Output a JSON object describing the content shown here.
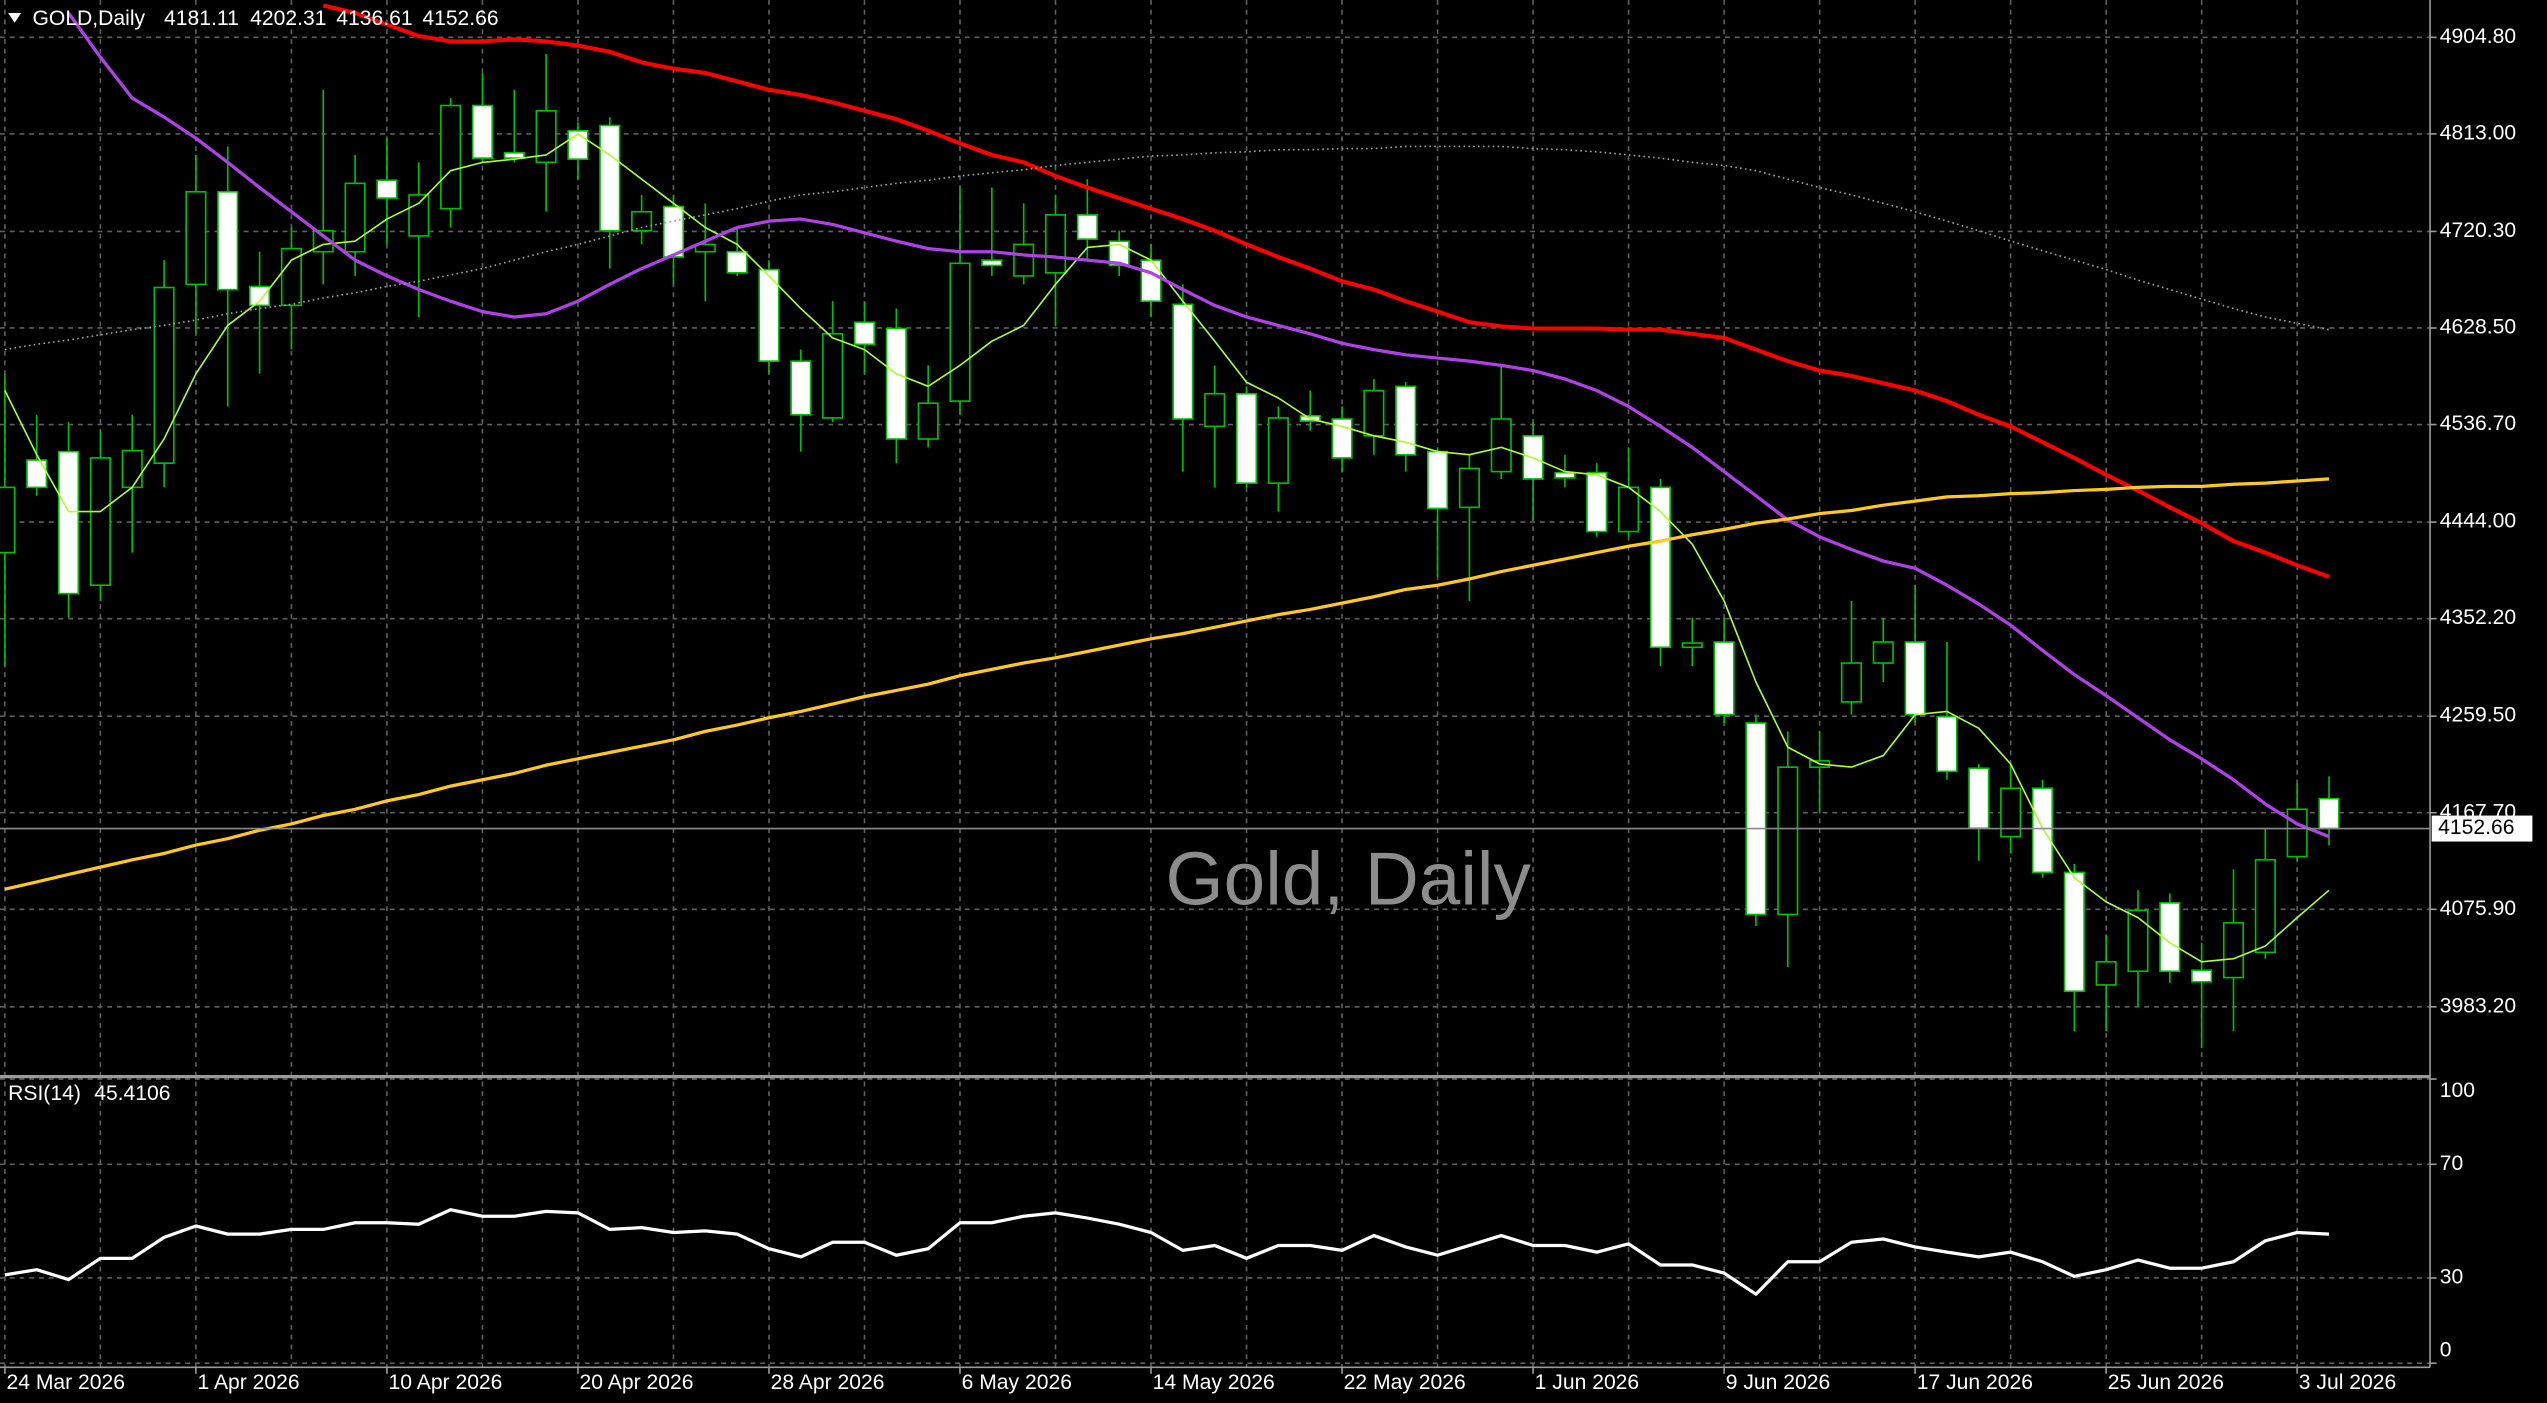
{
  "chart_data": [
    {
      "type": "candlestick",
      "title": "GOLD,Daily",
      "watermark": "Gold, Daily",
      "background": "#000000",
      "grid": true,
      "grid_color": "#5f5f5f",
      "up_color": "#000000",
      "down_color": "#ffffff",
      "wick_color": "#00c000",
      "categories": [
        "24 Mar 2026",
        null,
        null,
        null,
        null,
        null,
        "1 Apr 2026",
        null,
        null,
        null,
        null,
        null,
        "10 Apr 2026",
        null,
        null,
        null,
        null,
        null,
        "20 Apr 2026",
        null,
        null,
        null,
        null,
        null,
        "28 Apr 2026",
        null,
        null,
        null,
        null,
        null,
        "6 May 2026",
        null,
        null,
        null,
        null,
        null,
        "14 May 2026",
        null,
        null,
        null,
        null,
        null,
        "22 May 2026",
        null,
        null,
        null,
        null,
        null,
        "1 Jun 2026",
        null,
        null,
        null,
        null,
        null,
        "9 Jun 2026",
        null,
        null,
        null,
        null,
        null,
        "17 Jun 2026",
        null,
        null,
        null,
        null,
        null,
        "25 Jun 2026",
        null,
        null,
        null,
        null,
        null,
        "3 Jul 2026",
        null
      ],
      "open": [
        4415,
        4503,
        4511,
        4384,
        4477,
        4500,
        4670,
        4758,
        4668,
        4650,
        4701,
        4701,
        4769,
        4716,
        4742,
        4840,
        4795,
        4786,
        4816,
        4821,
        4721,
        4744,
        4701,
        4701,
        4684,
        4597,
        4543,
        4634,
        4628,
        4523,
        4559,
        4693,
        4678,
        4681,
        4736,
        4711,
        4693,
        4651,
        4535,
        4566,
        4481,
        4545,
        4542,
        4526,
        4573,
        4511,
        4458,
        4492,
        4526,
        4491,
        4491,
        4435,
        4477,
        4325,
        4330,
        4253,
        4071,
        4211,
        4273,
        4310,
        4330,
        4259,
        4210,
        4145,
        4191,
        4111,
        4004,
        4017,
        4082,
        4018,
        4011,
        4035,
        4126,
        4181.11
      ],
      "high": [
        4585,
        4546,
        4539,
        4531,
        4546,
        4693,
        4793,
        4801,
        4701,
        4724,
        4855,
        4793,
        4809,
        4786,
        4847,
        4871,
        4855,
        4889,
        4824,
        4829,
        4755,
        4755,
        4747,
        4724,
        4693,
        4608,
        4654,
        4654,
        4647,
        4593,
        4762,
        4762,
        4747,
        4755,
        4770,
        4721,
        4708,
        4670,
        4593,
        4573,
        4554,
        4569,
        4554,
        4580,
        4577,
        4515,
        4508,
        4593,
        4539,
        4508,
        4500,
        4515,
        4485,
        4353,
        4353,
        4261,
        4245,
        4245,
        4369,
        4353,
        4384,
        4330,
        4214,
        4214,
        4199,
        4119,
        4052,
        4094,
        4091,
        4044,
        4114,
        4153,
        4196,
        4202.31
      ],
      "low": [
        4307,
        4469,
        4353,
        4369,
        4415,
        4477,
        4623,
        4554,
        4585,
        4608,
        4670,
        4678,
        4708,
        4639,
        4724,
        4786,
        4786,
        4739,
        4770,
        4685,
        4708,
        4670,
        4654,
        4678,
        4585,
        4511,
        4539,
        4585,
        4500,
        4515,
        4546,
        4678,
        4670,
        4631,
        4693,
        4678,
        4639,
        4492,
        4477,
        4477,
        4454,
        4531,
        4492,
        4508,
        4492,
        4392,
        4369,
        4485,
        4446,
        4477,
        4430,
        4430,
        4307,
        4307,
        4253,
        4060,
        4021,
        4168,
        4261,
        4292,
        4253,
        4199,
        4122,
        4129,
        4106,
        3960,
        3960,
        3983,
        4006,
        3944,
        3960,
        4029,
        4122,
        4136.61
      ],
      "close": [
        4477,
        4477,
        4376,
        4505,
        4512,
        4667,
        4758,
        4665,
        4650,
        4704,
        4721,
        4766,
        4752,
        4755,
        4840,
        4790,
        4790,
        4835,
        4789,
        4721,
        4739,
        4696,
        4708,
        4681,
        4597,
        4546,
        4623,
        4613,
        4523,
        4557,
        4690,
        4688,
        4708,
        4736,
        4713,
        4688,
        4654,
        4542,
        4566,
        4481,
        4543,
        4540,
        4505,
        4569,
        4508,
        4457,
        4495,
        4542,
        4485,
        4486,
        4435,
        4477,
        4325,
        4329,
        4261,
        4071,
        4211,
        4217,
        4310,
        4330,
        4261,
        4207,
        4153,
        4191,
        4111,
        3998,
        4026,
        4075,
        4017,
        4007,
        4063,
        4123,
        4171,
        4152.66
      ],
      "series": [
        {
          "color": "#adff2f",
          "values": [
            4569,
            4508,
            4454,
            4454,
            4477,
            4523,
            4585,
            4631,
            4654,
            4693,
            4708,
            4711,
            4732,
            4747,
            4778,
            4786,
            4789,
            4793,
            4813,
            4793,
            4770,
            4747,
            4724,
            4708,
            4678,
            4647,
            4619,
            4608,
            4585,
            4573,
            4593,
            4616,
            4631,
            4670,
            4705,
            4708,
            4693,
            4654,
            4616,
            4577,
            4562,
            4542,
            4535,
            4526,
            4520,
            4511,
            4508,
            4515,
            4505,
            4492,
            4489,
            4477,
            4454,
            4423,
            4369,
            4292,
            4230,
            4214,
            4211,
            4222,
            4261,
            4264,
            4248,
            4214,
            4153,
            4106,
            4083,
            4068,
            4044,
            4026,
            4029,
            4041,
            4068,
            4094
          ]
        },
        {
          "color": "#b040e8",
          "values": [
            null,
            null,
            4928,
            4886,
            4847,
            4829,
            4809,
            4786,
            4762,
            4739,
            4716,
            4693,
            4678,
            4665,
            4654,
            4644,
            4639,
            4642,
            4654,
            4670,
            4685,
            4698,
            4711,
            4724,
            4730,
            4732,
            4727,
            4719,
            4711,
            4704,
            4701,
            4701,
            4698,
            4696,
            4693,
            4690,
            4681,
            4665,
            4650,
            4639,
            4631,
            4623,
            4614,
            4608,
            4603,
            4600,
            4597,
            4593,
            4588,
            4580,
            4569,
            4554,
            4535,
            4515,
            4492,
            4469,
            4446,
            4430,
            4418,
            4407,
            4400,
            4384,
            4366,
            4346,
            4322,
            4299,
            4279,
            4258,
            4237,
            4219,
            4199,
            4176,
            4157,
            4145
          ]
        },
        {
          "color": "#ff0000",
          "values": [
            null,
            null,
            null,
            null,
            null,
            null,
            null,
            null,
            null,
            null,
            4935,
            4928,
            4917,
            4906,
            4901,
            4901,
            4903,
            4901,
            4897,
            4891,
            4881,
            4875,
            4871,
            4863,
            4855,
            4850,
            4843,
            4835,
            4827,
            4816,
            4804,
            4793,
            4786,
            4773,
            4762,
            4752,
            4742,
            4732,
            4721,
            4708,
            4696,
            4685,
            4673,
            4665,
            4654,
            4644,
            4634,
            4630,
            4628,
            4628,
            4628,
            4627,
            4627,
            4623,
            4619,
            4608,
            4597,
            4588,
            4583,
            4576,
            4569,
            4559,
            4546,
            4535,
            4520,
            4505,
            4489,
            4474,
            4458,
            4443,
            4426,
            4415,
            4403,
            4392
          ]
        },
        {
          "color": "#ffc81e",
          "values": [
            4095,
            4102,
            4109,
            4116,
            4123,
            4129,
            4137,
            4143,
            4151,
            4157,
            4165,
            4171,
            4179,
            4185,
            4193,
            4199,
            4205,
            4213,
            4219,
            4225,
            4231,
            4237,
            4245,
            4251,
            4258,
            4264,
            4271,
            4278,
            4284,
            4290,
            4298,
            4304,
            4310,
            4315,
            4321,
            4327,
            4333,
            4338,
            4344,
            4350,
            4356,
            4361,
            4367,
            4373,
            4380,
            4384,
            4390,
            4397,
            4403,
            4409,
            4415,
            4421,
            4426,
            4432,
            4437,
            4443,
            4447,
            4452,
            4455,
            4460,
            4464,
            4468,
            4469,
            4471,
            4472,
            4474,
            4475,
            4477,
            4478,
            4478,
            4480,
            4481,
            4483,
            4485
          ]
        },
        {
          "color": "#a0a0a0",
          "style": "dotted",
          "values": [
            4608,
            4613,
            4617,
            4622,
            4627,
            4631,
            4636,
            4642,
            4647,
            4651,
            4657,
            4662,
            4668,
            4673,
            4679,
            4685,
            4693,
            4701,
            4708,
            4716,
            4724,
            4730,
            4736,
            4742,
            4749,
            4755,
            4758,
            4762,
            4766,
            4769,
            4773,
            4776,
            4779,
            4783,
            4786,
            4789,
            4792,
            4793,
            4795,
            4796,
            4798,
            4798,
            4799,
            4799,
            4801,
            4801,
            4801,
            4801,
            4799,
            4798,
            4796,
            4793,
            4790,
            4786,
            4783,
            4778,
            4770,
            4762,
            4755,
            4747,
            4739,
            4730,
            4721,
            4711,
            4702,
            4693,
            4684,
            4674,
            4665,
            4656,
            4647,
            4639,
            4633,
            4627
          ]
        }
      ],
      "ylim": [
        3918.4,
        4940.3
      ],
      "yticks": [
        {
          "value": 4904.8,
          "label": "4904.80"
        },
        {
          "value": 4813,
          "label": "4813.00"
        },
        {
          "value": 4720.3,
          "label": "4720.30"
        },
        {
          "value": 4628.5,
          "label": "4628.50"
        },
        {
          "value": 4536.7,
          "label": "4536.70"
        },
        {
          "value": 4444,
          "label": "4444.00"
        },
        {
          "value": 4352.2,
          "label": "4352.20"
        },
        {
          "value": 4259.5,
          "label": "4259.50"
        },
        {
          "value": 4167.7,
          "label": "4167.70"
        },
        {
          "value": 4075.9,
          "label": "4075.90"
        },
        {
          "value": 3983.2,
          "label": "3983.20"
        }
      ]
    },
    {
      "type": "line",
      "title": "RSI(14)",
      "color": "#ffffff",
      "values": [
        31.1,
        32.9,
        29.4,
        36.9,
        36.9,
        44.3,
        48.3,
        45.4,
        45.4,
        47.1,
        47.1,
        49.4,
        49.4,
        48.9,
        54.0,
        51.7,
        51.7,
        53.4,
        52.9,
        47.1,
        47.7,
        46.0,
        46.6,
        45.4,
        40.3,
        37.4,
        42.6,
        42.6,
        38.0,
        40.3,
        49.4,
        49.4,
        51.7,
        52.9,
        51.1,
        48.9,
        46.0,
        39.7,
        41.4,
        36.9,
        41.4,
        41.4,
        39.7,
        44.9,
        40.9,
        38.0,
        41.4,
        44.9,
        41.4,
        41.4,
        39.1,
        42.0,
        34.6,
        34.6,
        31.7,
        24.3,
        35.7,
        35.7,
        42.6,
        43.7,
        40.9,
        39.1,
        37.4,
        39.1,
        35.7,
        30.6,
        32.9,
        36.3,
        33.4,
        33.4,
        35.7,
        43.1,
        46.0,
        45.4106
      ],
      "ylim": [
        0,
        100
      ],
      "yticks": [
        100,
        70,
        30,
        0
      ],
      "grid": true
    }
  ]
}
